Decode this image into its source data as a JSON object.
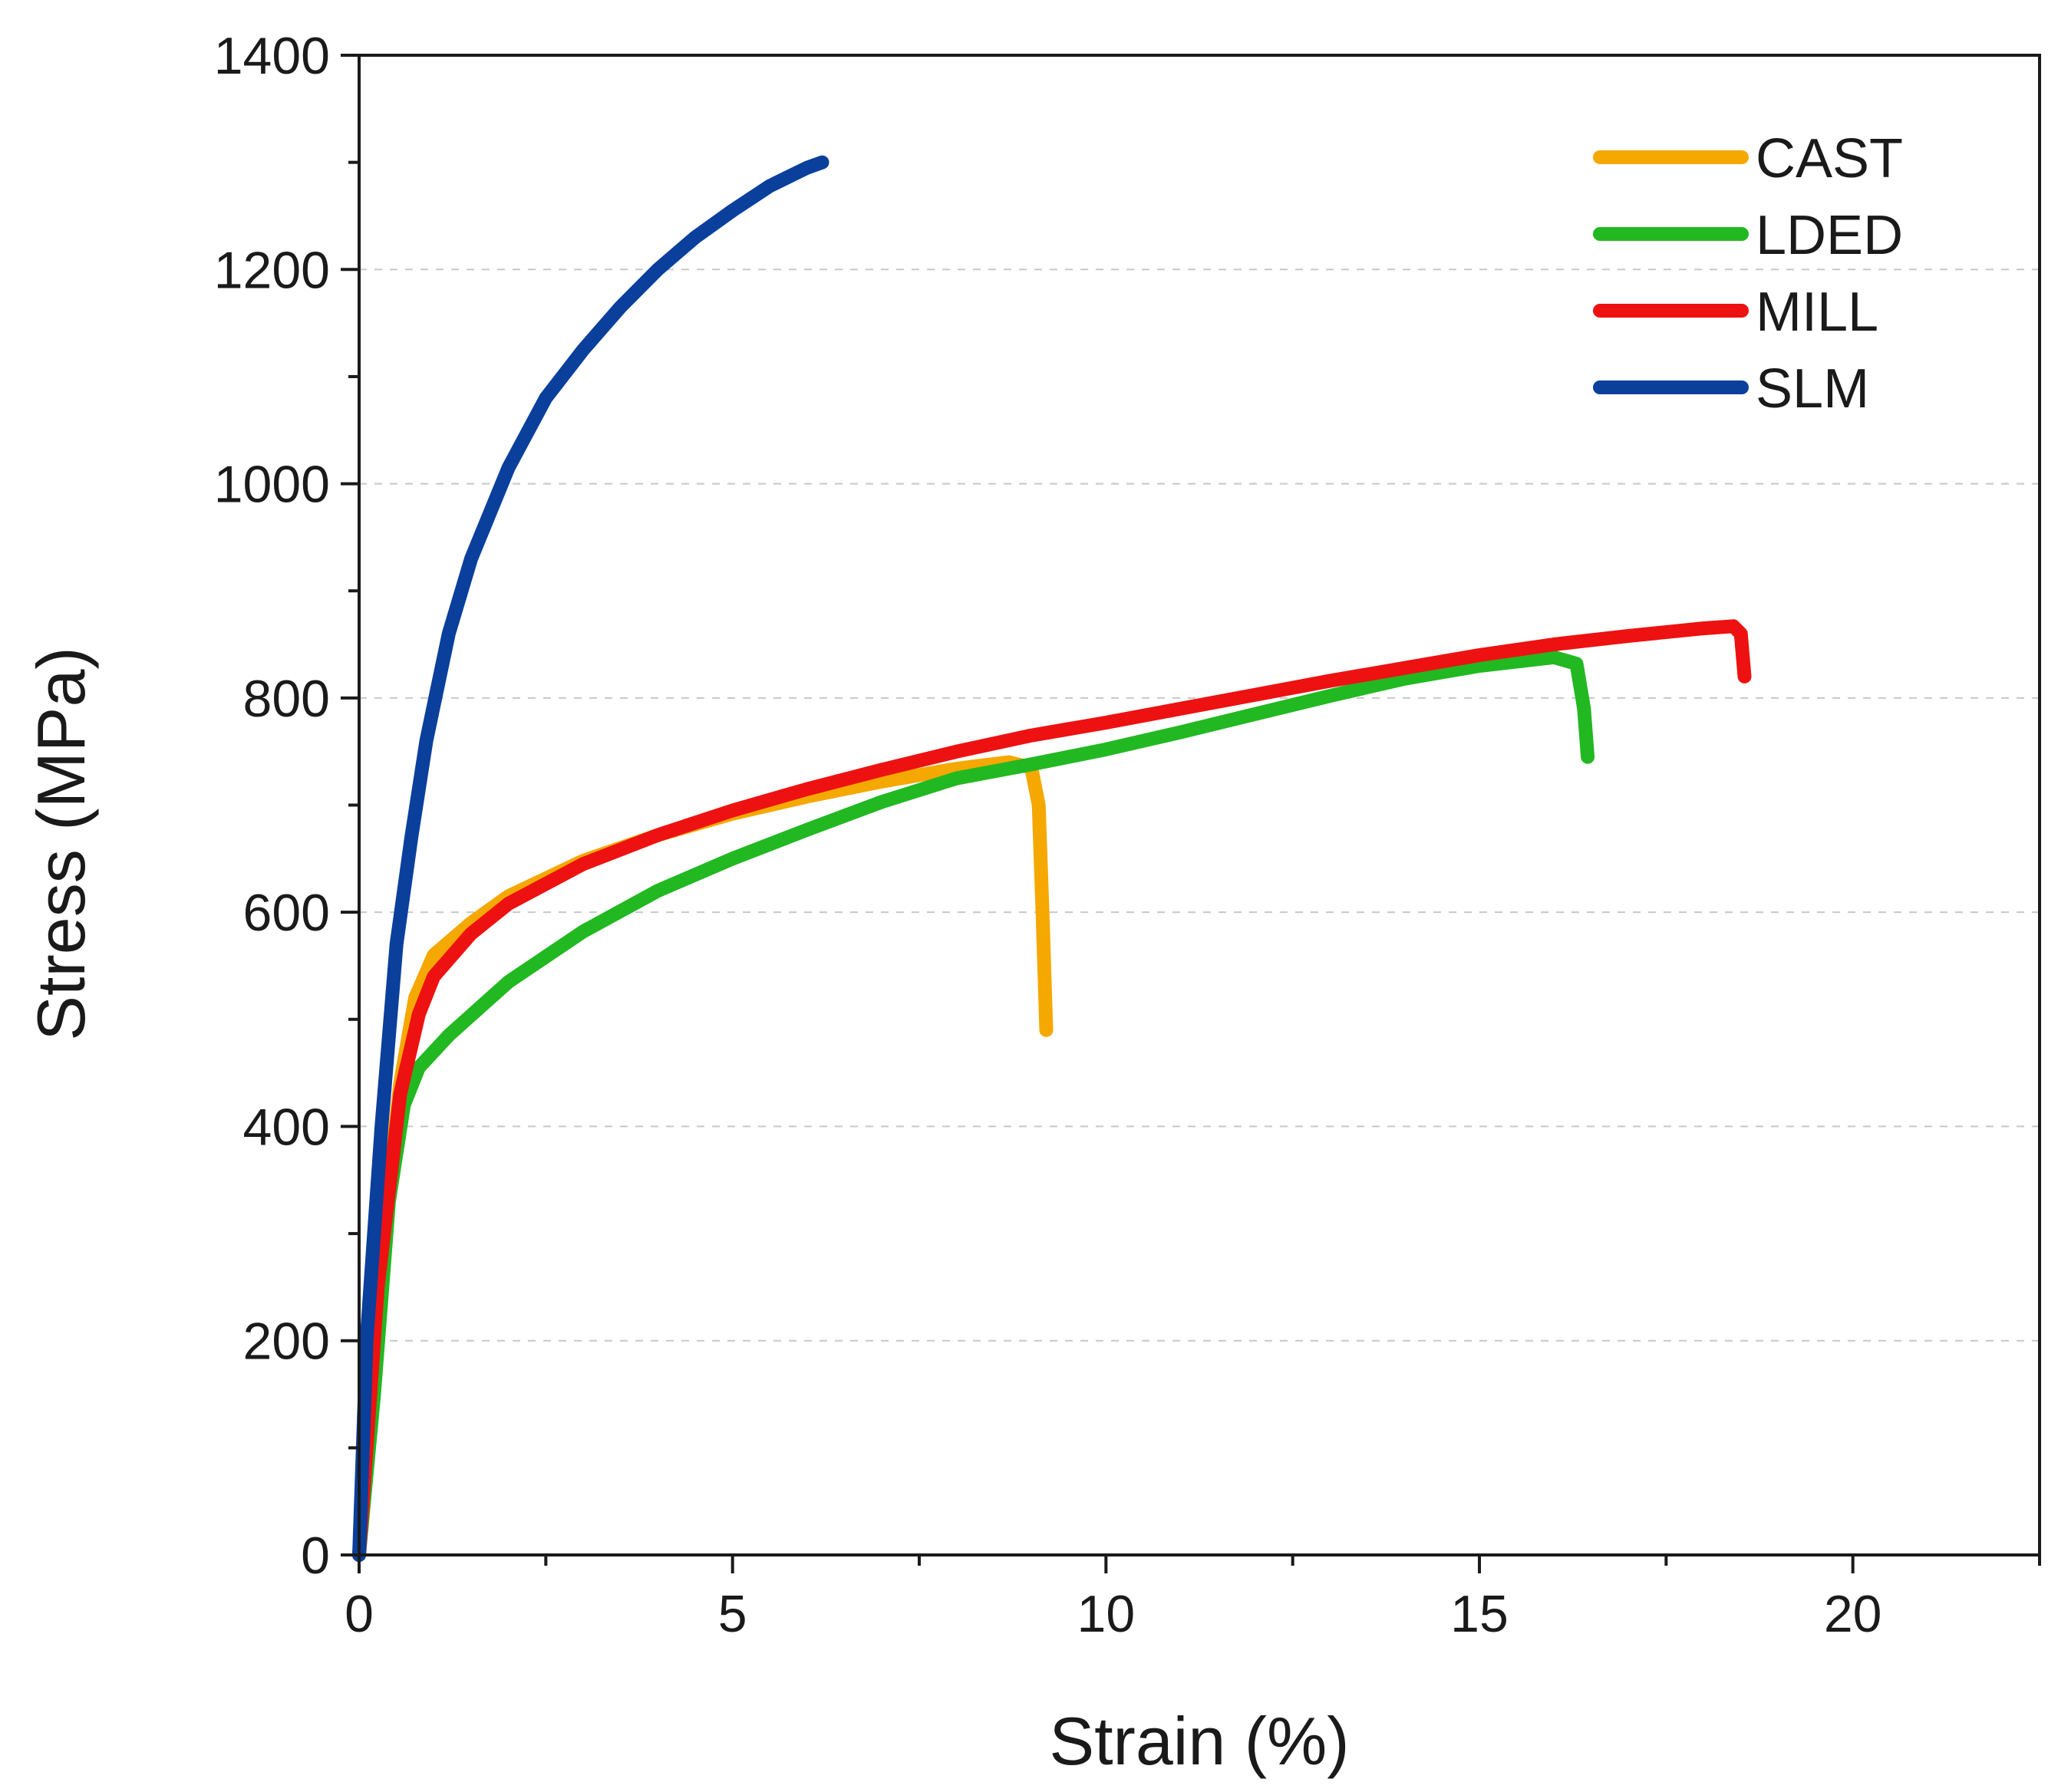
{
  "chart_data": {
    "type": "line",
    "title": "",
    "xlabel": "Strain (%)",
    "ylabel": "Stress (MPa)",
    "xlim": [
      0,
      22.5
    ],
    "ylim": [
      0,
      1400
    ],
    "x_ticks": [
      0,
      5,
      10,
      15,
      20
    ],
    "y_ticks": [
      0,
      200,
      400,
      600,
      800,
      1000,
      1200,
      1400
    ],
    "x_tick_labels": [
      "0",
      "5",
      "10",
      "15",
      "20"
    ],
    "y_tick_labels": [
      "0",
      "200",
      "400",
      "600",
      "800",
      "1000",
      "1200",
      "1400"
    ],
    "grid": "horizontal dashed",
    "legend_position": "top-right",
    "series": [
      {
        "name": "CAST",
        "color": "#F5A800",
        "points": [
          [
            0,
            0
          ],
          [
            0.25,
            250
          ],
          [
            0.55,
            440
          ],
          [
            0.75,
            520
          ],
          [
            1.0,
            560
          ],
          [
            1.5,
            590
          ],
          [
            2,
            615
          ],
          [
            3,
            648
          ],
          [
            4,
            672
          ],
          [
            5,
            692
          ],
          [
            6,
            708
          ],
          [
            7,
            722
          ],
          [
            8,
            734
          ],
          [
            8.7,
            740
          ],
          [
            9.0,
            735
          ],
          [
            9.1,
            700
          ],
          [
            9.15,
            600
          ],
          [
            9.2,
            490
          ]
        ]
      },
      {
        "name": "LDED",
        "color": "#22B822",
        "points": [
          [
            0,
            0
          ],
          [
            0.2,
            150
          ],
          [
            0.4,
            330
          ],
          [
            0.6,
            420
          ],
          [
            0.8,
            455
          ],
          [
            1.2,
            485
          ],
          [
            2,
            535
          ],
          [
            3,
            582
          ],
          [
            4,
            620
          ],
          [
            5,
            650
          ],
          [
            6,
            677
          ],
          [
            7,
            703
          ],
          [
            8,
            725
          ],
          [
            9,
            738
          ],
          [
            10,
            752
          ],
          [
            11,
            768
          ],
          [
            12,
            785
          ],
          [
            13,
            802
          ],
          [
            14,
            818
          ],
          [
            15,
            830
          ],
          [
            16,
            838
          ],
          [
            16.3,
            832
          ],
          [
            16.4,
            790
          ],
          [
            16.45,
            745
          ]
        ]
      },
      {
        "name": "MILL",
        "color": "#EE1111",
        "points": [
          [
            0,
            0
          ],
          [
            0.25,
            250
          ],
          [
            0.55,
            430
          ],
          [
            0.8,
            505
          ],
          [
            1.0,
            540
          ],
          [
            1.5,
            580
          ],
          [
            2,
            608
          ],
          [
            3,
            645
          ],
          [
            4,
            672
          ],
          [
            5,
            695
          ],
          [
            6,
            715
          ],
          [
            7,
            733
          ],
          [
            8,
            750
          ],
          [
            9,
            765
          ],
          [
            10,
            777
          ],
          [
            11,
            790
          ],
          [
            12,
            803
          ],
          [
            13,
            816
          ],
          [
            14,
            828
          ],
          [
            15,
            840
          ],
          [
            16,
            850
          ],
          [
            17,
            858
          ],
          [
            18,
            865
          ],
          [
            18.4,
            867
          ],
          [
            18.5,
            860
          ],
          [
            18.55,
            820
          ]
        ]
      },
      {
        "name": "SLM",
        "color": "#0A3F9C",
        "points": [
          [
            0,
            0
          ],
          [
            0.1,
            200
          ],
          [
            0.3,
            400
          ],
          [
            0.5,
            570
          ],
          [
            0.7,
            670
          ],
          [
            0.9,
            760
          ],
          [
            1.2,
            860
          ],
          [
            1.5,
            930
          ],
          [
            2,
            1015
          ],
          [
            2.5,
            1080
          ],
          [
            3,
            1125
          ],
          [
            3.5,
            1165
          ],
          [
            4,
            1200
          ],
          [
            4.5,
            1230
          ],
          [
            5,
            1255
          ],
          [
            5.5,
            1278
          ],
          [
            6,
            1295
          ],
          [
            6.2,
            1300
          ]
        ]
      }
    ]
  }
}
